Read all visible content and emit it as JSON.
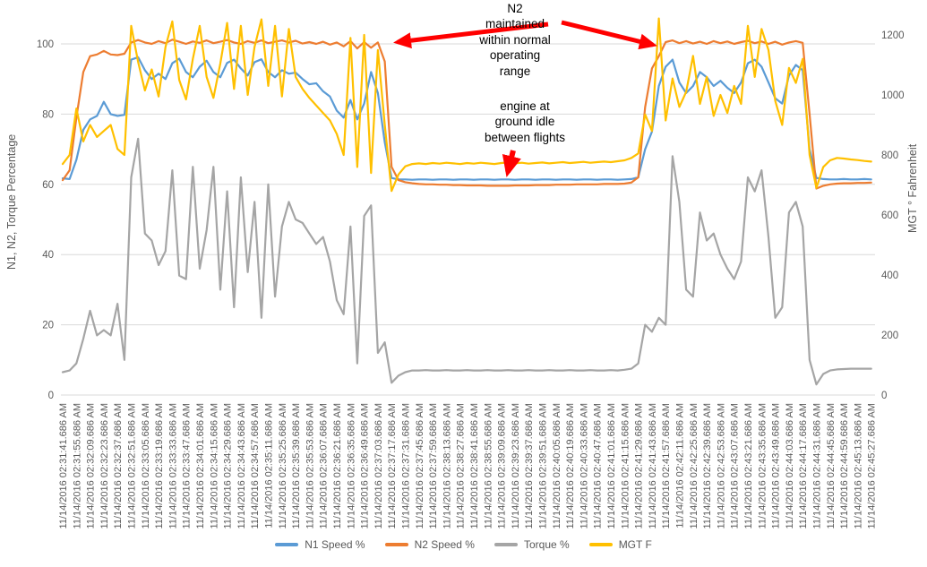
{
  "chart_data": {
    "type": "line",
    "title": "",
    "legend_position": "bottom",
    "grid": "horizontal",
    "colors": {
      "gridline": "#D9D9D9",
      "tick_text": "#595959",
      "annotation_text": "#000000",
      "annotation_arrow": "#FF0000",
      "background": "#FFFFFF"
    },
    "y_left": {
      "label": "N1, N2, Torque Percentage",
      "ticks": [
        0,
        20,
        40,
        60,
        80,
        100
      ],
      "range_shown": [
        0,
        110
      ]
    },
    "y_right": {
      "label": "MGT ° Fahrenheit",
      "ticks": [
        0,
        200,
        400,
        600,
        800,
        1000,
        1200
      ],
      "range_shown": [
        0,
        1290
      ]
    },
    "x": {
      "seconds_between_ticks": 14,
      "sample_interval_seconds": 7,
      "tick_labels": [
        "11/14/2016 02:31:41.686 AM",
        "11/14/2016 02:31:55.686 AM",
        "11/14/2016 02:32:09.686 AM",
        "11/14/2016 02:32:23.686 AM",
        "11/14/2016 02:32:37.686 AM",
        "11/14/2016 02:32:51.686 AM",
        "11/14/2016 02:33:05.686 AM",
        "11/14/2016 02:33:19.686 AM",
        "11/14/2016 02:33:33.686 AM",
        "11/14/2016 02:33:47.686 AM",
        "11/14/2016 02:34:01.686 AM",
        "11/14/2016 02:34:15.686 AM",
        "11/14/2016 02:34:29.686 AM",
        "11/14/2016 02:34:43.686 AM",
        "11/14/2016 02:34:57.686 AM",
        "11/14/2016 02:35:11.686 AM",
        "11/14/2016 02:35:25.686 AM",
        "11/14/2016 02:35:39.686 AM",
        "11/14/2016 02:35:53.686 AM",
        "11/14/2016 02:36:07.686 AM",
        "11/14/2016 02:36:21.686 AM",
        "11/14/2016 02:36:35.686 AM",
        "11/14/2016 02:36:49.686 AM",
        "11/14/2016 02:37:03.686 AM",
        "11/14/2016 02:37:17.686 AM",
        "11/14/2016 02:37:31.686 AM",
        "11/14/2016 02:37:45.686 AM",
        "11/14/2016 02:37:59.686 AM",
        "11/14/2016 02:38:13.686 AM",
        "11/14/2016 02:38:27.686 AM",
        "11/14/2016 02:38:41.686 AM",
        "11/14/2016 02:38:55.686 AM",
        "11/14/2016 02:39:09.686 AM",
        "11/14/2016 02:39:23.686 AM",
        "11/14/2016 02:39:37.686 AM",
        "11/14/2016 02:39:51.686 AM",
        "11/14/2016 02:40:05.686 AM",
        "11/14/2016 02:40:19.686 AM",
        "11/14/2016 02:40:33.686 AM",
        "11/14/2016 02:40:47.686 AM",
        "11/14/2016 02:41:01.686 AM",
        "11/14/2016 02:41:15.686 AM",
        "11/14/2016 02:41:29.686 AM",
        "11/14/2016 02:41:43.686 AM",
        "11/14/2016 02:41:57.686 AM",
        "11/14/2016 02:42:11.686 AM",
        "11/14/2016 02:42:25.686 AM",
        "11/14/2016 02:42:39.686 AM",
        "11/14/2016 02:42:53.686 AM",
        "11/14/2016 02:43:07.686 AM",
        "11/14/2016 02:43:21.686 AM",
        "11/14/2016 02:43:35.686 AM",
        "11/14/2016 02:43:49.686 AM",
        "11/14/2016 02:44:03.686 AM",
        "11/14/2016 02:44:17.686 AM",
        "11/14/2016 02:44:31.686 AM",
        "11/14/2016 02:44:45.686 AM",
        "11/14/2016 02:44:59.686 AM",
        "11/14/2016 02:45:13.686 AM",
        "11/14/2016 02:45:27.686 AM"
      ]
    },
    "series": [
      {
        "name": "N1 Speed %",
        "color": "#5B9BD5",
        "axis": "left",
        "values": [
          61.7,
          61.5,
          67,
          75.5,
          78.5,
          79.5,
          83.5,
          80,
          79.5,
          79.8,
          95.5,
          96.2,
          92.5,
          90,
          91.5,
          90,
          94.5,
          95.8,
          92,
          90.5,
          93.5,
          95.2,
          92,
          90.5,
          94.6,
          95.5,
          93,
          91,
          94.8,
          95.6,
          92,
          90.5,
          92.5,
          91.5,
          91.8,
          90,
          88.5,
          88.8,
          86.5,
          85,
          81,
          79,
          84,
          78.5,
          83,
          92,
          86,
          72,
          61.8,
          61.4,
          61.4,
          61.3,
          61.4,
          61.4,
          61.3,
          61.4,
          61.4,
          61.3,
          61.4,
          61.4,
          61.3,
          61.4,
          61.4,
          61.3,
          61.4,
          61.4,
          61.3,
          61.4,
          61.4,
          61.3,
          61.4,
          61.4,
          61.3,
          61.4,
          61.4,
          61.3,
          61.4,
          61.4,
          61.3,
          61.4,
          61.4,
          61.3,
          61.4,
          61.5,
          62,
          70,
          75,
          88,
          93.5,
          95.5,
          89,
          86,
          88,
          92,
          90.5,
          88,
          89.5,
          87.5,
          86,
          89,
          94.5,
          95.5,
          93.5,
          89,
          84.5,
          83,
          91,
          94,
          92.5,
          70,
          61.8,
          61.5,
          61.4,
          61.4,
          61.5,
          61.4,
          61.4,
          61.5,
          61.4
        ]
      },
      {
        "name": "N2 Speed %",
        "color": "#ED7D31",
        "axis": "left",
        "values": [
          61.2,
          64,
          79,
          92,
          96.5,
          97,
          98,
          97,
          96.8,
          97.2,
          100.4,
          101.1,
          100.4,
          100,
          100.8,
          100.2,
          101.2,
          100.6,
          100,
          100.7,
          100.3,
          101,
          100.2,
          100.6,
          101.1,
          100.4,
          100,
          100.8,
          100.3,
          101,
          100.2,
          100.6,
          101,
          100.4,
          100.9,
          100.1,
          100.5,
          100,
          100.6,
          99.8,
          100.4,
          99.3,
          100.8,
          98.7,
          100.5,
          98.9,
          100.4,
          95,
          65,
          61.2,
          60.6,
          60.3,
          60.1,
          60,
          60,
          59.9,
          59.9,
          59.8,
          59.8,
          59.7,
          59.7,
          59.7,
          59.6,
          59.6,
          59.6,
          59.6,
          59.7,
          59.7,
          59.7,
          59.8,
          59.8,
          59.8,
          59.9,
          59.9,
          59.9,
          60,
          60,
          60,
          60,
          60.1,
          60.1,
          60.1,
          60.2,
          60.5,
          62,
          82,
          93,
          96.5,
          100.5,
          101,
          100.2,
          100.8,
          100.1,
          100.6,
          100,
          100.8,
          100.2,
          100.7,
          100,
          100.5,
          100.9,
          100.2,
          100.7,
          100,
          100.6,
          99.8,
          100.4,
          100.8,
          100.3,
          80,
          58.8,
          59.6,
          60,
          60.2,
          60.3,
          60.3,
          60.4,
          60.4,
          60.5
        ]
      },
      {
        "name": "Torque %",
        "color": "#A5A5A5",
        "axis": "left",
        "values": [
          6.5,
          7,
          9,
          16,
          24,
          17,
          18.5,
          17,
          26,
          10,
          62,
          73,
          46,
          44,
          37,
          41,
          64,
          34,
          33,
          65,
          36,
          47,
          65,
          30,
          58,
          25,
          62,
          35,
          55,
          22,
          60,
          28,
          48,
          55,
          50,
          49,
          46,
          43,
          45,
          38,
          27,
          23,
          48,
          9,
          51,
          54,
          12,
          15,
          3.5,
          5.5,
          6.5,
          7,
          7,
          7.1,
          7,
          7,
          7.1,
          7,
          7,
          7.1,
          7,
          7,
          7.1,
          7,
          7,
          7.1,
          7,
          7,
          7.1,
          7,
          7,
          7.1,
          7,
          7,
          7.1,
          7,
          7,
          7.1,
          7,
          7,
          7.1,
          7,
          7.2,
          7.5,
          9,
          20,
          18,
          22,
          20,
          68,
          55,
          30,
          28,
          52,
          44,
          46,
          40,
          36,
          33,
          38,
          62,
          58,
          64,
          45,
          22,
          25,
          52,
          55,
          48,
          10,
          3,
          6,
          7,
          7.3,
          7.4,
          7.5,
          7.5,
          7.5,
          7.5
        ]
      },
      {
        "name": "MGT F",
        "color": "#FFC000",
        "axis": "right",
        "values": [
          770,
          800,
          955,
          845,
          900,
          860,
          880,
          900,
          820,
          800,
          1230,
          1110,
          1015,
          1085,
          995,
          1160,
          1245,
          1050,
          985,
          1120,
          1230,
          1060,
          990,
          1105,
          1240,
          1020,
          1230,
          1000,
          1160,
          1252,
          1030,
          1230,
          995,
          1220,
          1060,
          1020,
          990,
          965,
          940,
          915,
          870,
          800,
          1190,
          760,
          1200,
          740,
          1150,
          900,
          680,
          735,
          762,
          770,
          772,
          770,
          773,
          771,
          774,
          772,
          770,
          773,
          771,
          774,
          772,
          770,
          773,
          775,
          772,
          774,
          771,
          773,
          775,
          772,
          774,
          776,
          773,
          775,
          777,
          774,
          776,
          778,
          776,
          779,
          782,
          790,
          805,
          935,
          880,
          1255,
          915,
          1055,
          960,
          1010,
          1130,
          970,
          1060,
          930,
          1000,
          940,
          1030,
          970,
          1230,
          1060,
          1220,
          1150,
          980,
          900,
          1090,
          1040,
          1120,
          800,
          690,
          760,
          782,
          790,
          788,
          785,
          783,
          780,
          778
        ]
      }
    ],
    "annotations": [
      {
        "text": "N2\nmaintained\nwithin normal\noperating\nrange",
        "target": "N2 Speed % line at end of flight 1 and start of flight 2"
      },
      {
        "text": "engine at\nground idle\nbetween flights",
        "target": "flat idle section between flights"
      }
    ]
  }
}
